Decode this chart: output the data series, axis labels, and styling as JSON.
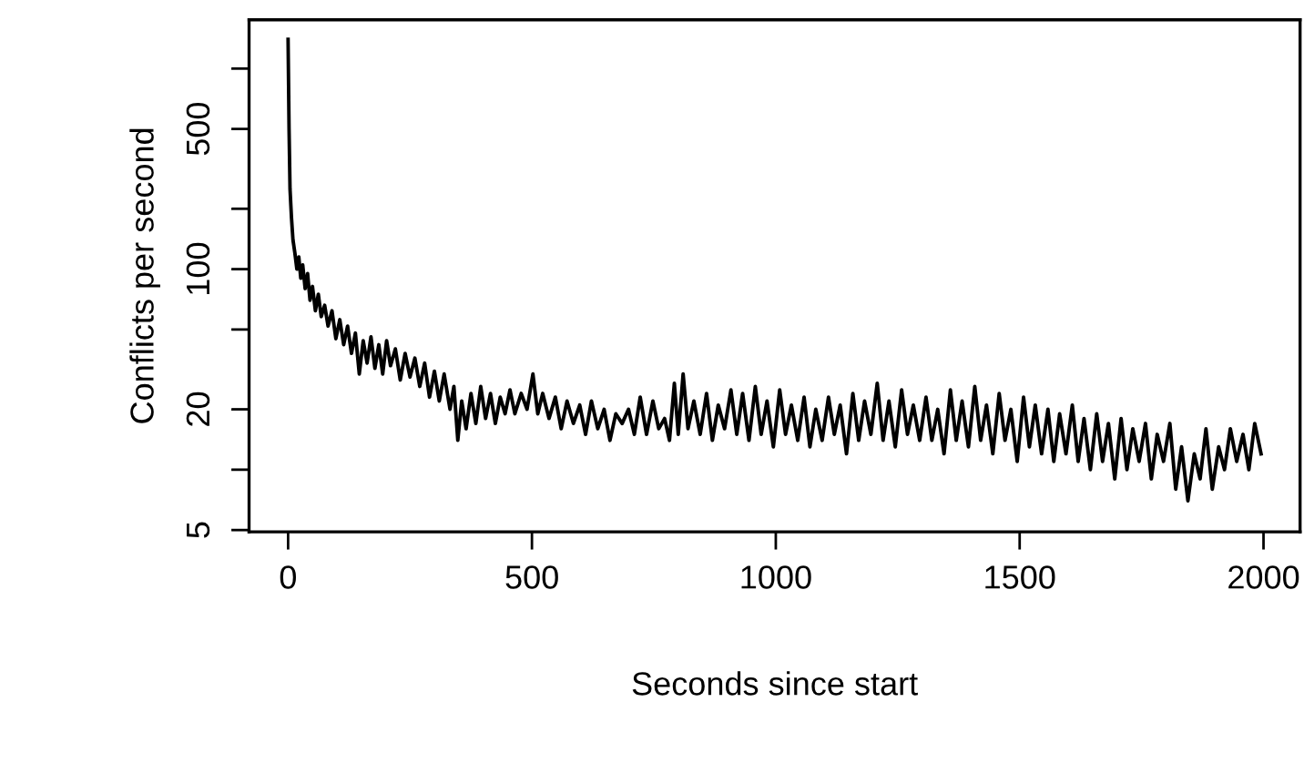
{
  "chart_data": {
    "type": "line",
    "xlabel": "Seconds since start",
    "ylabel": "Conflicts per second",
    "log": "y",
    "grid": false,
    "marker": "none",
    "line_style": "solid",
    "xlim": [
      -80,
      2075
    ],
    "xticks": [
      0,
      500,
      1000,
      1500,
      2000
    ],
    "ylim": [
      4.9,
      1750
    ],
    "yticks": [
      5,
      {
        "value": 10,
        "label": null
      },
      20,
      {
        "value": 50,
        "label": null
      },
      100,
      {
        "value": 200,
        "label": null
      },
      500,
      {
        "value": 1000,
        "label": null
      }
    ],
    "series": [
      {
        "color": "#000000",
        "x": [
          0,
          2,
          4,
          7,
          10,
          14,
          18,
          22,
          26,
          30,
          35,
          40,
          45,
          50,
          56,
          62,
          68,
          75,
          82,
          90,
          98,
          106,
          114,
          122,
          130,
          138,
          146,
          154,
          162,
          170,
          178,
          186,
          194,
          202,
          210,
          220,
          230,
          240,
          250,
          260,
          270,
          280,
          290,
          300,
          310,
          320,
          332,
          340,
          348,
          356,
          365,
          375,
          385,
          395,
          405,
          415,
          425,
          435,
          445,
          455,
          465,
          478,
          490,
          502,
          512,
          522,
          535,
          548,
          560,
          572,
          585,
          598,
          610,
          622,
          635,
          648,
          660,
          672,
          685,
          698,
          710,
          722,
          735,
          748,
          760,
          772,
          782,
          792,
          800,
          810,
          820,
          832,
          845,
          858,
          870,
          882,
          895,
          908,
          920,
          932,
          945,
          958,
          970,
          982,
          995,
          1008,
          1020,
          1032,
          1045,
          1058,
          1070,
          1082,
          1095,
          1108,
          1120,
          1132,
          1145,
          1158,
          1170,
          1182,
          1195,
          1208,
          1220,
          1232,
          1245,
          1258,
          1270,
          1282,
          1295,
          1308,
          1320,
          1332,
          1345,
          1358,
          1370,
          1382,
          1395,
          1408,
          1420,
          1432,
          1445,
          1458,
          1470,
          1482,
          1495,
          1508,
          1520,
          1532,
          1545,
          1558,
          1570,
          1582,
          1595,
          1608,
          1620,
          1632,
          1645,
          1658,
          1670,
          1682,
          1695,
          1708,
          1720,
          1732,
          1745,
          1758,
          1770,
          1782,
          1795,
          1808,
          1820,
          1832,
          1845,
          1858,
          1870,
          1882,
          1895,
          1908,
          1920,
          1932,
          1945,
          1958,
          1970,
          1982,
          1995
        ],
        "values": [
          1400,
          500,
          250,
          180,
          140,
          120,
          100,
          115,
          90,
          105,
          80,
          95,
          70,
          82,
          62,
          75,
          58,
          66,
          52,
          62,
          45,
          56,
          42,
          52,
          38,
          48,
          30,
          44,
          34,
          46,
          32,
          42,
          30,
          44,
          33,
          40,
          28,
          38,
          29,
          36,
          26,
          34,
          23,
          31,
          22,
          30,
          20,
          26,
          14,
          22,
          16,
          24,
          17,
          26,
          18,
          24,
          17,
          23,
          19,
          25,
          19,
          24,
          20,
          30,
          19,
          24,
          18,
          23,
          16,
          22,
          17,
          21,
          15,
          22,
          16,
          20,
          14,
          19,
          17,
          20,
          15,
          23,
          15,
          22,
          16,
          18,
          14,
          27,
          15,
          30,
          16,
          22,
          15,
          24,
          14,
          21,
          16,
          25,
          15,
          24,
          14,
          26,
          15,
          22,
          13,
          25,
          15,
          21,
          14,
          23,
          13,
          20,
          14,
          23,
          15,
          21,
          12,
          24,
          14,
          22,
          15,
          27,
          14,
          22,
          13,
          25,
          15,
          21,
          14,
          23,
          14,
          20,
          12,
          25,
          14,
          22,
          13,
          26,
          14,
          21,
          12,
          24,
          14,
          20,
          11,
          23,
          13,
          21,
          12,
          20,
          11,
          19,
          12,
          21,
          11,
          18,
          10,
          19,
          11,
          17,
          9,
          18,
          10,
          16,
          11,
          17,
          9,
          15,
          11,
          17,
          8,
          13,
          7,
          12,
          9,
          16,
          8,
          13,
          10,
          16,
          11,
          15,
          10,
          17,
          12
        ]
      }
    ]
  }
}
